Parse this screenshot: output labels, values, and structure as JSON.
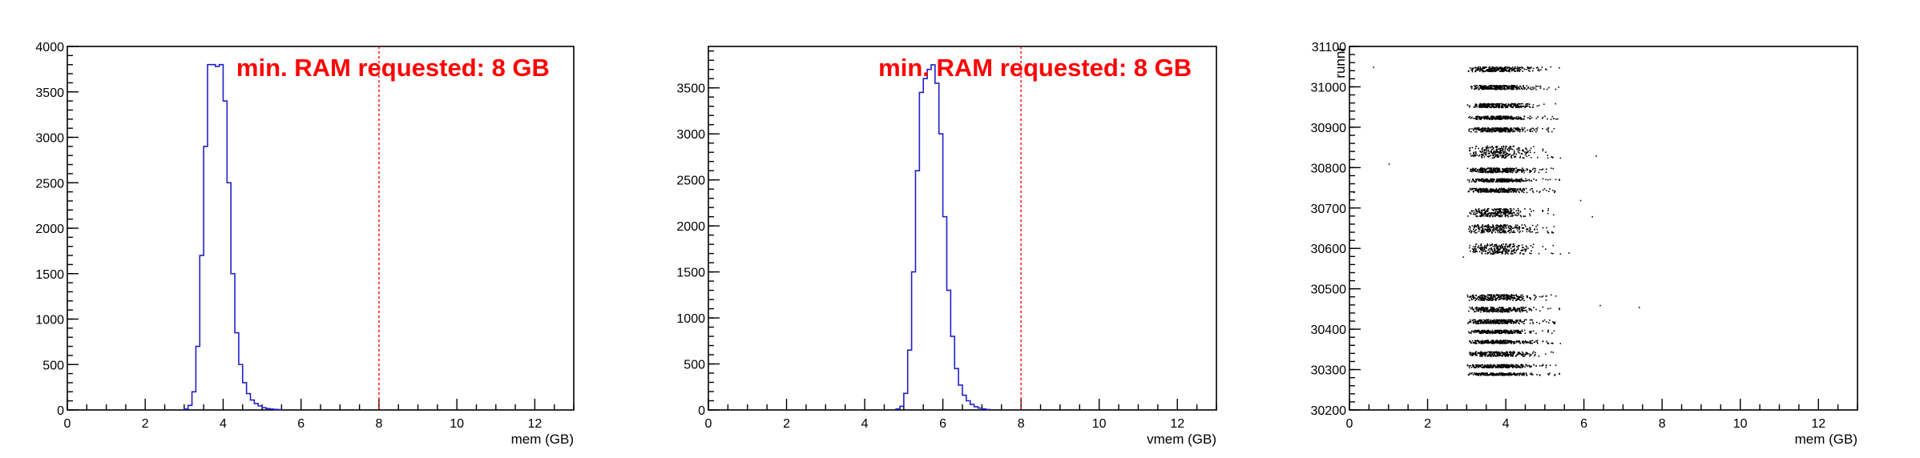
{
  "chart_data": [
    {
      "type": "histogram",
      "xlabel": "mem (GB)",
      "ylabel": "",
      "xlim": [
        0,
        13
      ],
      "ylim": [
        0,
        4000
      ],
      "xticks": [
        "0",
        "2",
        "4",
        "6",
        "8",
        "10",
        "12"
      ],
      "yticks": [
        "0",
        "500",
        "1000",
        "1500",
        "2000",
        "2500",
        "3000",
        "3500",
        "4000"
      ],
      "bin_width": 0.1,
      "bins": [
        [
          3.0,
          10
        ],
        [
          3.1,
          50
        ],
        [
          3.2,
          200
        ],
        [
          3.3,
          700
        ],
        [
          3.4,
          1700
        ],
        [
          3.5,
          2900
        ],
        [
          3.6,
          3800
        ],
        [
          3.7,
          3800
        ],
        [
          3.8,
          3780
        ],
        [
          3.9,
          3800
        ],
        [
          4.0,
          3400
        ],
        [
          4.1,
          2500
        ],
        [
          4.2,
          1500
        ],
        [
          4.3,
          850
        ],
        [
          4.4,
          500
        ],
        [
          4.5,
          300
        ],
        [
          4.6,
          180
        ],
        [
          4.7,
          110
        ],
        [
          4.8,
          70
        ],
        [
          4.9,
          45
        ],
        [
          5.0,
          25
        ],
        [
          5.1,
          15
        ],
        [
          5.2,
          10
        ],
        [
          5.3,
          6
        ],
        [
          5.4,
          4
        ]
      ],
      "line_color": "#2020c8",
      "annotation": {
        "text": "min. RAM requested: 8 GB",
        "color": "#ff0000"
      },
      "threshold": {
        "x": 8,
        "color": "#ff0000"
      }
    },
    {
      "type": "histogram",
      "xlabel": "vmem (GB)",
      "ylabel": "",
      "xlim": [
        0,
        13
      ],
      "ylim": [
        0,
        3950
      ],
      "xticks": [
        "0",
        "2",
        "4",
        "6",
        "8",
        "10",
        "12"
      ],
      "yticks": [
        "0",
        "500",
        "1000",
        "1500",
        "2000",
        "2500",
        "3000",
        "3500"
      ],
      "bin_width": 0.1,
      "bins": [
        [
          4.8,
          10
        ],
        [
          4.9,
          40
        ],
        [
          5.0,
          180
        ],
        [
          5.1,
          650
        ],
        [
          5.2,
          1500
        ],
        [
          5.3,
          2600
        ],
        [
          5.4,
          3450
        ],
        [
          5.5,
          3600
        ],
        [
          5.6,
          3700
        ],
        [
          5.7,
          3750
        ],
        [
          5.8,
          3550
        ],
        [
          5.9,
          3000
        ],
        [
          6.0,
          2100
        ],
        [
          6.1,
          1300
        ],
        [
          6.2,
          800
        ],
        [
          6.3,
          450
        ],
        [
          6.4,
          270
        ],
        [
          6.5,
          160
        ],
        [
          6.6,
          100
        ],
        [
          6.7,
          60
        ],
        [
          6.8,
          35
        ],
        [
          6.9,
          20
        ],
        [
          7.0,
          10
        ],
        [
          7.1,
          5
        ]
      ],
      "line_color": "#2020c8",
      "annotation": {
        "text": "min. RAM requested: 8 GB",
        "color": "#ff0000"
      },
      "threshold": {
        "x": 8,
        "color": "#ff0000"
      }
    },
    {
      "type": "scatter",
      "xlabel": "mem (GB)",
      "ylabel": "runnr",
      "xlim": [
        0,
        13
      ],
      "ylim": [
        30200,
        31100
      ],
      "xticks": [
        "0",
        "2",
        "4",
        "6",
        "8",
        "10",
        "12"
      ],
      "yticks": [
        "30200",
        "30300",
        "30400",
        "30500",
        "30600",
        "30700",
        "30800",
        "30900",
        "31000",
        "31100"
      ],
      "marker_color": "#000000",
      "description": "dense point clusters at mem ~3-5 GB across runnr bands",
      "bands": [
        {
          "y": 31045,
          "h": 12
        },
        {
          "y": 31000,
          "h": 10
        },
        {
          "y": 30955,
          "h": 10
        },
        {
          "y": 30925,
          "h": 8
        },
        {
          "y": 30895,
          "h": 10
        },
        {
          "y": 30840,
          "h": 30
        },
        {
          "y": 30795,
          "h": 12
        },
        {
          "y": 30770,
          "h": 8
        },
        {
          "y": 30745,
          "h": 10
        },
        {
          "y": 30690,
          "h": 20
        },
        {
          "y": 30650,
          "h": 20
        },
        {
          "y": 30600,
          "h": 25
        },
        {
          "y": 30480,
          "h": 15
        },
        {
          "y": 30450,
          "h": 12
        },
        {
          "y": 30420,
          "h": 10
        },
        {
          "y": 30395,
          "h": 8
        },
        {
          "y": 30370,
          "h": 8
        },
        {
          "y": 30340,
          "h": 12
        },
        {
          "y": 30310,
          "h": 8
        },
        {
          "y": 30290,
          "h": 6
        }
      ]
    }
  ]
}
